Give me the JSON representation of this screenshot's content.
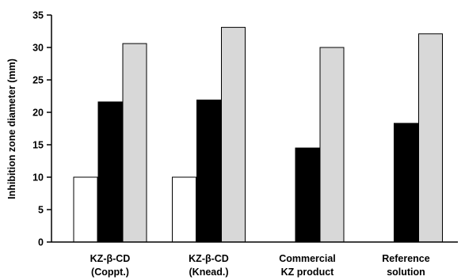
{
  "chart_data": {
    "type": "bar",
    "title": "",
    "xlabel": "",
    "ylabel": "Inhibition zone diameter (mm)",
    "ylim": [
      0,
      35
    ],
    "yticks": [
      0,
      5,
      10,
      15,
      20,
      25,
      30,
      35
    ],
    "ytick_labels": [
      "0",
      "5",
      "10",
      "15",
      "20",
      "25",
      "30",
      "35"
    ],
    "grid": false,
    "legend": "none",
    "categories": [
      [
        "KZ-β-CD",
        "(Coppt.)"
      ],
      [
        "KZ-β-CD",
        "(Knead.)"
      ],
      [
        "Commercial",
        "KZ product"
      ],
      [
        "Reference",
        "solution"
      ]
    ],
    "series": [
      {
        "values": [
          10,
          10,
          null,
          null
        ],
        "color": "#ffffff"
      },
      {
        "values": [
          21.6,
          21.9,
          14.5,
          18.3
        ],
        "color": "#000000"
      },
      {
        "values": [
          30.6,
          33.1,
          30.0,
          32.1
        ],
        "color": "#d8d8d8"
      }
    ],
    "colors": {
      "axis": "#000000",
      "bar_stroke": "#000000"
    }
  }
}
